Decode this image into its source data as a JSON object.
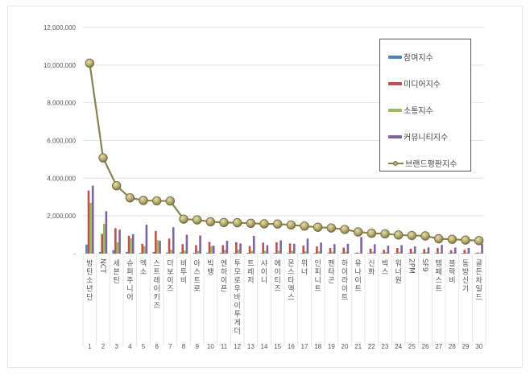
{
  "chart_data": {
    "type": "bar+line",
    "title": "",
    "xlabel": "",
    "ylabel": "",
    "ylim": [
      0,
      12000000
    ],
    "yticks": [
      "-",
      "2,000,000",
      "4,000,000",
      "6,000,000",
      "8,000,000",
      "10,000,000",
      "12,000,000"
    ],
    "grid": true,
    "legend_position": "upper right (inside)",
    "categories": [
      "방탄소년단",
      "NCT",
      "세븐틴",
      "슈퍼주니어",
      "엑소",
      "스트레이키즈",
      "더보이즈",
      "비투비",
      "아스트로",
      "빅뱅",
      "엔하이픈",
      "투모로우바이투게더",
      "트레저",
      "샤이니",
      "에이티즈",
      "몬스타엑스",
      "위너",
      "인피니트",
      "펜타곤",
      "하이라이트",
      "유나이트",
      "신화",
      "빅스",
      "워너원",
      "2PM",
      "SF9",
      "템페스트",
      "블락비",
      "동방신기",
      "골든차일드"
    ],
    "ranks": [
      1,
      2,
      3,
      4,
      5,
      6,
      7,
      8,
      9,
      10,
      11,
      12,
      13,
      14,
      15,
      16,
      17,
      18,
      19,
      20,
      21,
      22,
      23,
      24,
      25,
      26,
      27,
      28,
      29,
      30
    ],
    "series": [
      {
        "name": "참여지수",
        "type": "bar",
        "color": "#4f81bd",
        "values": [
          480000,
          90000,
          180000,
          90000,
          40000,
          90000,
          60000,
          60000,
          50000,
          50000,
          40000,
          40000,
          40000,
          30000,
          40000,
          30000,
          30000,
          30000,
          30000,
          30000,
          30000,
          30000,
          30000,
          30000,
          30000,
          30000,
          30000,
          30000,
          30000,
          30000
        ]
      },
      {
        "name": "미디어지수",
        "type": "bar",
        "color": "#c0504d",
        "values": [
          3350000,
          1050000,
          1350000,
          950000,
          520000,
          1200000,
          800000,
          500000,
          450000,
          620000,
          450000,
          600000,
          400000,
          580000,
          600000,
          540000,
          420000,
          380000,
          300000,
          320000,
          60000,
          260000,
          200000,
          300000,
          260000,
          240000,
          300000,
          180000,
          200000,
          60000
        ]
      },
      {
        "name": "소통지수",
        "type": "bar",
        "color": "#9bbb59",
        "values": [
          2700000,
          1580000,
          600000,
          820000,
          400000,
          720000,
          200000,
          150000,
          150000,
          400000,
          200000,
          200000,
          150000,
          150000,
          150000,
          150000,
          120000,
          120000,
          100000,
          100000,
          40000,
          100000,
          80000,
          80000,
          80000,
          80000,
          60000,
          60000,
          60000,
          40000
        ]
      },
      {
        "name": "커뮤니티지수",
        "type": "bar",
        "color": "#8064a2",
        "values": [
          3600000,
          2250000,
          1270000,
          1030000,
          1530000,
          680000,
          1400000,
          1000000,
          960000,
          420000,
          680000,
          540000,
          940000,
          450000,
          700000,
          520000,
          800000,
          580000,
          500000,
          520000,
          880000,
          500000,
          420000,
          450000,
          380000,
          330000,
          460000,
          320000,
          300000,
          520000
        ]
      },
      {
        "name": "브랜드평판지수",
        "type": "line",
        "color": "#8a8350",
        "values": [
          10100000,
          5080000,
          3600000,
          2960000,
          2820000,
          2800000,
          2790000,
          1830000,
          1790000,
          1690000,
          1650000,
          1640000,
          1610000,
          1580000,
          1570000,
          1520000,
          1460000,
          1400000,
          1360000,
          1280000,
          1150000,
          1080000,
          1050000,
          990000,
          960000,
          940000,
          790000,
          760000,
          720000,
          690000
        ]
      }
    ]
  },
  "legend": {
    "items": [
      "참여지수",
      "미디어지수",
      "소통지수",
      "커뮤니티지수",
      "브랜드평판지수"
    ]
  }
}
